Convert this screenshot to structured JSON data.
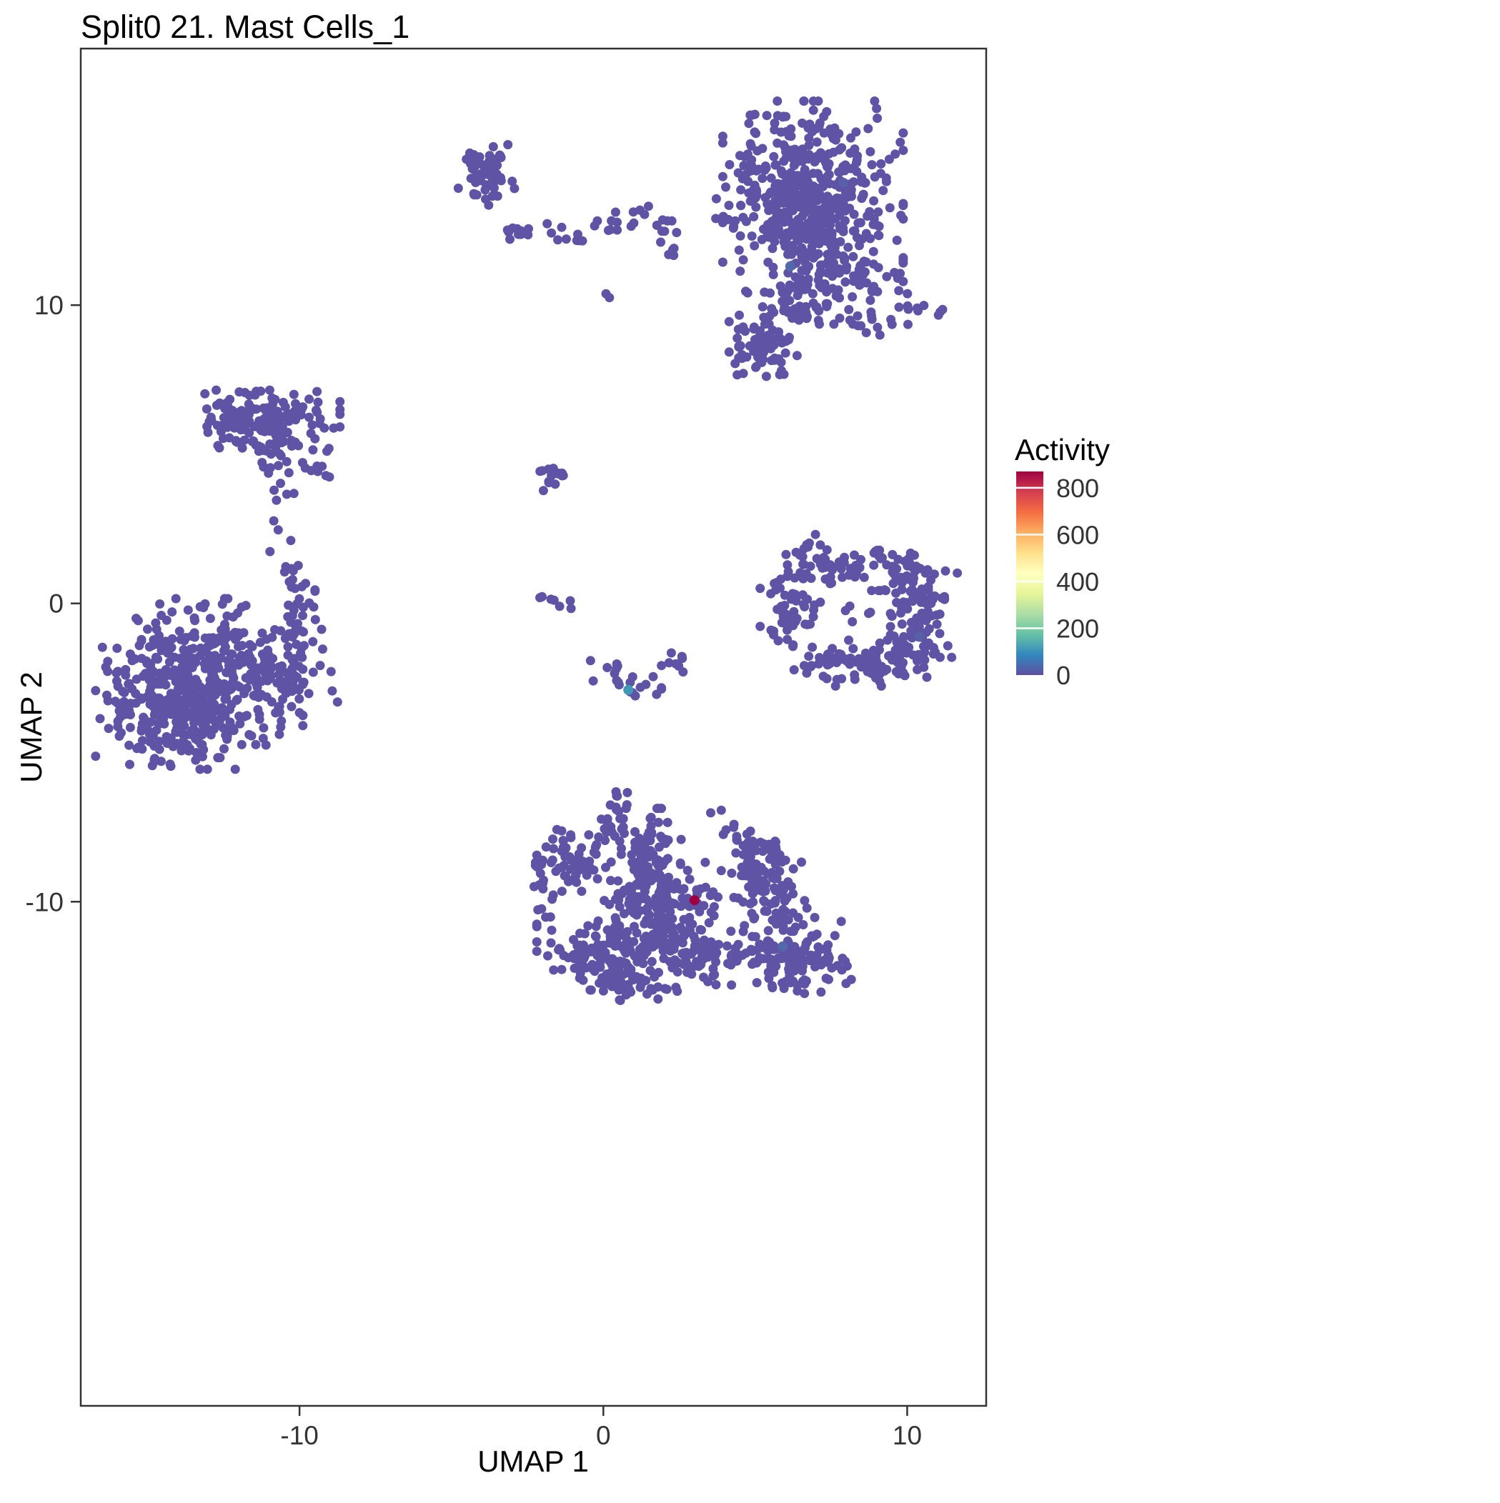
{
  "chart_data": {
    "type": "scatter",
    "title": "Split0 21. Mast Cells_1",
    "xlabel": "UMAP 1",
    "ylabel": "UMAP 2",
    "x_ticks": [
      -10,
      0,
      10
    ],
    "y_ticks": [
      10,
      0,
      -10
    ],
    "x_range": [
      -17.2,
      12.6
    ],
    "y_range": [
      -26.9,
      18.6
    ],
    "grid": false,
    "point_color": "#5E53A5",
    "panel_border_color": "#333333",
    "tick_label_color": "#333333",
    "legend": {
      "title": "Activity",
      "position": "right",
      "min": 0,
      "max": 870,
      "ticks": [
        800,
        600,
        400,
        200,
        0
      ],
      "gradient_bottom_to_top": [
        "#5E4FA2",
        "#3288BD",
        "#66C2A5",
        "#ABDDA4",
        "#E6F598",
        "#FFFFBF",
        "#FEE08B",
        "#FDAE61",
        "#F46D43",
        "#D53E4F",
        "#9E0142"
      ]
    },
    "clusters": [
      {
        "name": "top-small-blob",
        "cx": -3.85,
        "cy": 14.4,
        "sx": 0.42,
        "sy": 0.55,
        "n": 55
      },
      {
        "name": "top-small-arm",
        "cx": -2.6,
        "cy": 12.45,
        "sx": 0.5,
        "sy": 0.16,
        "n": 14
      },
      {
        "name": "top-dots-1",
        "cx": -1.05,
        "cy": 12.3,
        "sx": 0.18,
        "sy": 0.14,
        "n": 6
      },
      {
        "name": "top-dots-2",
        "cx": 0.3,
        "cy": 12.7,
        "sx": 0.28,
        "sy": 0.2,
        "n": 9
      },
      {
        "name": "top-dots-3",
        "cx": 1.15,
        "cy": 13.1,
        "sx": 0.2,
        "sy": 0.22,
        "n": 5
      },
      {
        "name": "top-dots-4",
        "cx": 1.95,
        "cy": 12.55,
        "sx": 0.28,
        "sy": 0.2,
        "n": 8
      },
      {
        "name": "top-dots-5",
        "cx": 2.3,
        "cy": 11.8,
        "sx": 0.14,
        "sy": 0.14,
        "n": 4
      },
      {
        "name": "lone-dot",
        "cx": 0.2,
        "cy": 10.35,
        "sx": 0.1,
        "sy": 0.1,
        "n": 2
      },
      {
        "name": "top-right-outliers",
        "cx": 3.95,
        "cy": 12.95,
        "sx": 0.28,
        "sy": 0.28,
        "n": 5
      },
      {
        "name": "top-right-main",
        "cx": 6.9,
        "cy": 13.1,
        "sx": 1.35,
        "sy": 1.7,
        "n": 420
      },
      {
        "name": "top-right-core",
        "cx": 6.6,
        "cy": 13.9,
        "sx": 0.8,
        "sy": 1.0,
        "n": 140
      },
      {
        "name": "top-right-lower-fringe",
        "cx": 7.6,
        "cy": 10.9,
        "sx": 1.1,
        "sy": 0.5,
        "n": 50
      },
      {
        "name": "top-right-arm",
        "cx": 9.9,
        "cy": 9.75,
        "sx": 0.7,
        "sy": 0.18,
        "n": 12
      },
      {
        "name": "top-right-arm-2",
        "cx": 8.75,
        "cy": 9.3,
        "sx": 0.3,
        "sy": 0.18,
        "n": 8
      },
      {
        "name": "top-right-sub-blob",
        "cx": 5.35,
        "cy": 8.6,
        "sx": 0.55,
        "sy": 0.45,
        "n": 65
      },
      {
        "name": "top-right-bridge",
        "cx": 6.2,
        "cy": 9.9,
        "sx": 0.4,
        "sy": 0.35,
        "n": 25
      },
      {
        "name": "mid-left-band",
        "cx": -11.2,
        "cy": 6.05,
        "sx": 1.15,
        "sy": 0.5,
        "n": 190
      },
      {
        "name": "mid-left-tail-blob",
        "cx": -9.35,
        "cy": 4.55,
        "sx": 0.25,
        "sy": 0.28,
        "n": 10
      },
      {
        "name": "mid-left-chain-1",
        "cx": -10.75,
        "cy": 4.75,
        "sx": 0.26,
        "sy": 0.28,
        "n": 8
      },
      {
        "name": "mid-left-chain-2",
        "cx": -10.6,
        "cy": 3.7,
        "sx": 0.2,
        "sy": 0.24,
        "n": 5
      },
      {
        "name": "mid-left-chain-3",
        "cx": -10.75,
        "cy": 2.6,
        "sx": 0.12,
        "sy": 0.15,
        "n": 2
      },
      {
        "name": "mid-left-chain-4",
        "cx": -10.4,
        "cy": 1.45,
        "sx": 0.26,
        "sy": 0.3,
        "n": 7
      },
      {
        "name": "mid-left-chain-5",
        "cx": -10.15,
        "cy": 0.6,
        "sx": 0.3,
        "sy": 0.3,
        "n": 8
      },
      {
        "name": "mid-left-chain-6",
        "cx": -9.95,
        "cy": -0.15,
        "sx": 0.35,
        "sy": 0.35,
        "n": 10
      },
      {
        "name": "mid-left-chain-7",
        "cx": -10.3,
        "cy": -0.9,
        "sx": 0.45,
        "sy": 0.4,
        "n": 14
      },
      {
        "name": "left-main",
        "cx": -13.3,
        "cy": -2.7,
        "sx": 1.55,
        "sy": 1.3,
        "n": 400
      },
      {
        "name": "left-core",
        "cx": -14.0,
        "cy": -3.3,
        "sx": 0.9,
        "sy": 0.8,
        "n": 150
      },
      {
        "name": "left-right-lobe",
        "cx": -10.4,
        "cy": -2.3,
        "sx": 0.75,
        "sy": 0.65,
        "n": 55
      },
      {
        "name": "center-small-blob",
        "cx": -1.7,
        "cy": 4.25,
        "sx": 0.2,
        "sy": 0.24,
        "n": 16
      },
      {
        "name": "center-zero-dots",
        "cx": -1.8,
        "cy": 0.1,
        "sx": 0.32,
        "sy": 0.12,
        "n": 5
      },
      {
        "name": "center-zero-dot2",
        "cx": -1.0,
        "cy": 0.05,
        "sx": 0.1,
        "sy": 0.1,
        "n": 2
      },
      {
        "name": "center-arc-1",
        "cx": 0.15,
        "cy": -2.25,
        "sx": 0.26,
        "sy": 0.24,
        "n": 8
      },
      {
        "name": "center-arc-2",
        "cx": 0.8,
        "cy": -2.8,
        "sx": 0.28,
        "sy": 0.2,
        "n": 8
      },
      {
        "name": "center-arc-3",
        "cx": 1.5,
        "cy": -2.65,
        "sx": 0.24,
        "sy": 0.2,
        "n": 5
      },
      {
        "name": "center-arc-4",
        "cx": 2.2,
        "cy": -2.1,
        "sx": 0.2,
        "sy": 0.24,
        "n": 5
      },
      {
        "name": "center-arc-5",
        "cx": 2.5,
        "cy": -1.7,
        "sx": 0.12,
        "sy": 0.18,
        "n": 3
      },
      {
        "name": "ring-right",
        "cx": 10.55,
        "cy": -0.35,
        "sx": 0.5,
        "sy": 0.85,
        "n": 85
      },
      {
        "name": "ring-bottom-right",
        "cx": 9.6,
        "cy": -1.8,
        "sx": 0.6,
        "sy": 0.4,
        "n": 45
      },
      {
        "name": "ring-bottom",
        "cx": 8.0,
        "cy": -2.0,
        "sx": 0.9,
        "sy": 0.35,
        "n": 55
      },
      {
        "name": "ring-left",
        "cx": 6.15,
        "cy": -0.1,
        "sx": 0.45,
        "sy": 0.75,
        "n": 55
      },
      {
        "name": "ring-top",
        "cx": 7.4,
        "cy": 1.3,
        "sx": 0.8,
        "sy": 0.3,
        "n": 40
      },
      {
        "name": "ring-top-right",
        "cx": 9.8,
        "cy": 1.2,
        "sx": 0.6,
        "sy": 0.35,
        "n": 40
      },
      {
        "name": "ring-top-left-dots",
        "cx": 6.75,
        "cy": 2.0,
        "sx": 0.2,
        "sy": 0.2,
        "n": 4
      },
      {
        "name": "ring-inner-sparse",
        "cx": 8.3,
        "cy": 0.1,
        "sx": 0.8,
        "sy": 0.6,
        "n": 12
      },
      {
        "name": "bottom-top-spur",
        "cx": 0.35,
        "cy": -6.6,
        "sx": 0.2,
        "sy": 0.28,
        "n": 10
      },
      {
        "name": "bottom-spur-2",
        "cx": 0.2,
        "cy": -7.45,
        "sx": 0.24,
        "sy": 0.24,
        "n": 7
      },
      {
        "name": "bottom-left-upper",
        "cx": -0.95,
        "cy": -8.55,
        "sx": 0.7,
        "sy": 0.5,
        "n": 65
      },
      {
        "name": "bottom-left-dots-1",
        "cx": -1.75,
        "cy": -9.6,
        "sx": 0.24,
        "sy": 0.2,
        "n": 5
      },
      {
        "name": "bottom-left-dots-2",
        "cx": -1.9,
        "cy": -10.35,
        "sx": 0.15,
        "sy": 0.2,
        "n": 4
      },
      {
        "name": "bottom-center-col",
        "cx": 1.35,
        "cy": -8.3,
        "sx": 0.55,
        "sy": 0.65,
        "n": 75
      },
      {
        "name": "bottom-center-low",
        "cx": 1.9,
        "cy": -10.0,
        "sx": 0.85,
        "sy": 0.6,
        "n": 120
      },
      {
        "name": "bottom-right-dots",
        "cx": 3.85,
        "cy": -7.5,
        "sx": 0.45,
        "sy": 0.3,
        "n": 9
      },
      {
        "name": "bottom-right-upper-lobe",
        "cx": 5.2,
        "cy": -8.8,
        "sx": 0.6,
        "sy": 0.55,
        "n": 85
      },
      {
        "name": "bottom-right-mid",
        "cx": 5.6,
        "cy": -10.2,
        "sx": 0.5,
        "sy": 0.45,
        "n": 35
      },
      {
        "name": "bottom-right-lobe",
        "cx": 6.3,
        "cy": -11.85,
        "sx": 0.85,
        "sy": 0.6,
        "n": 130
      },
      {
        "name": "bottom-center-lobe",
        "cx": 3.2,
        "cy": -11.9,
        "sx": 0.75,
        "sy": 0.5,
        "n": 80
      },
      {
        "name": "bottom-center-lobe-2",
        "cx": 2.2,
        "cy": -11.2,
        "sx": 0.5,
        "sy": 0.4,
        "n": 40
      },
      {
        "name": "bottom-left-lobe",
        "cx": -0.1,
        "cy": -11.75,
        "sx": 0.95,
        "sy": 0.55,
        "n": 130
      },
      {
        "name": "bottom-left-lobe-2",
        "cx": 0.7,
        "cy": -12.6,
        "sx": 0.5,
        "sy": 0.35,
        "n": 40
      },
      {
        "name": "bottom-connector",
        "cx": 0.9,
        "cy": -9.3,
        "sx": 0.3,
        "sy": 0.5,
        "n": 12
      },
      {
        "name": "bottom-far-left-dot",
        "cx": -2.2,
        "cy": -8.9,
        "sx": 0.14,
        "sy": 0.14,
        "n": 3
      }
    ],
    "highlight_points": [
      {
        "x": 3.0,
        "y": -9.95,
        "activity": 860,
        "color": "#9E0142"
      },
      {
        "x": 0.82,
        "y": -2.9,
        "activity": 180,
        "color": "#4098B4"
      },
      {
        "x": 6.15,
        "y": 11.3,
        "activity": 60,
        "color": "#5468AC"
      },
      {
        "x": 7.9,
        "y": 14.1,
        "activity": 40,
        "color": "#5760A9"
      },
      {
        "x": 5.9,
        "y": -11.5,
        "activity": 60,
        "color": "#5468AC"
      },
      {
        "x": 10.4,
        "y": -1.1,
        "activity": 40,
        "color": "#5760A9"
      }
    ]
  }
}
